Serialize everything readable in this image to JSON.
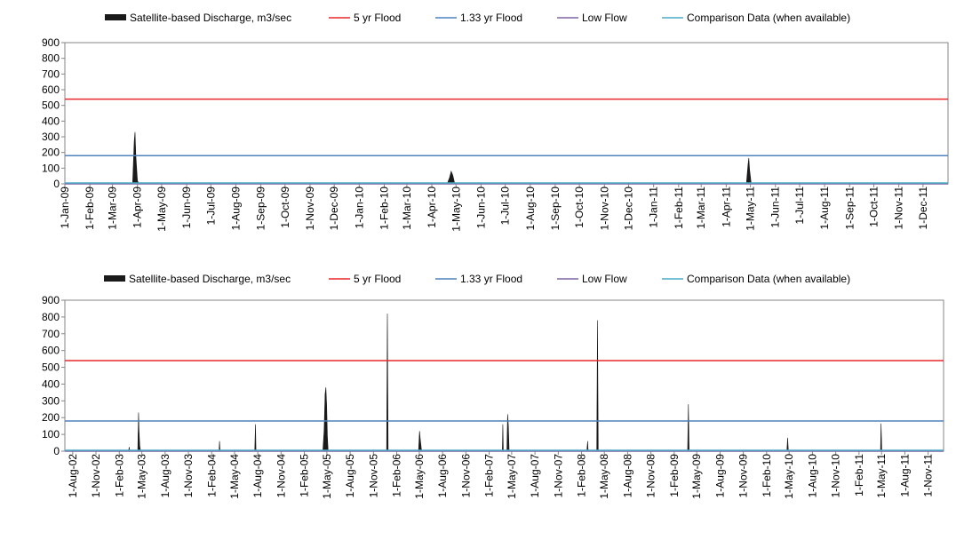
{
  "chart_data": [
    {
      "type": "area",
      "title": "",
      "xlabel": "",
      "ylabel": "",
      "ylim": [
        0,
        900
      ],
      "y_ticks": [
        "0",
        "100",
        "200",
        "300",
        "400",
        "500",
        "600",
        "700",
        "800",
        "900"
      ],
      "x_range": [
        "2009-01-01",
        "2012-01-01"
      ],
      "x_tick_labels": [
        "1-Jan-09",
        "1-Feb-09",
        "1-Mar-09",
        "1-Apr-09",
        "1-May-09",
        "1-Jun-09",
        "1-Jul-09",
        "1-Aug-09",
        "1-Sep-09",
        "1-Oct-09",
        "1-Nov-09",
        "1-Dec-09",
        "1-Jan-10",
        "1-Feb-10",
        "1-Mar-10",
        "1-Apr-10",
        "1-May-10",
        "1-Jun-10",
        "1-Jul-10",
        "1-Aug-10",
        "1-Sep-10",
        "1-Oct-10",
        "1-Nov-10",
        "1-Dec-10",
        "1-Jan-11",
        "1-Feb-11",
        "1-Mar-11",
        "1-Apr-11",
        "1-May-11",
        "1-Jun-11",
        "1-Jul-11",
        "1-Aug-11",
        "1-Sep-11",
        "1-Oct-11",
        "1-Nov-11",
        "1-Dec-11"
      ],
      "x_tick_dates": [
        "2009-01-01",
        "2009-02-01",
        "2009-03-01",
        "2009-04-01",
        "2009-05-01",
        "2009-06-01",
        "2009-07-01",
        "2009-08-01",
        "2009-09-01",
        "2009-10-01",
        "2009-11-01",
        "2009-12-01",
        "2010-01-01",
        "2010-02-01",
        "2010-03-01",
        "2010-04-01",
        "2010-05-01",
        "2010-06-01",
        "2010-07-01",
        "2010-08-01",
        "2010-09-01",
        "2010-10-01",
        "2010-11-01",
        "2010-12-01",
        "2011-01-01",
        "2011-02-01",
        "2011-03-01",
        "2011-04-01",
        "2011-05-01",
        "2011-06-01",
        "2011-07-01",
        "2011-08-01",
        "2011-09-01",
        "2011-10-01",
        "2011-11-01",
        "2011-12-01"
      ],
      "legend": [
        "Satellite-based Discharge, m3/sec",
        "5 yr Flood",
        "1.33 yr Flood",
        "Low Flow",
        "Comparison Data (when available)"
      ],
      "legend_position": "top",
      "grid": false,
      "horizontal_lines": [
        {
          "name": "5 yr Flood",
          "value": 540,
          "color": "#e8282b"
        },
        {
          "name": "1.33 yr Flood",
          "value": 180,
          "color": "#4f81bd"
        },
        {
          "name": "Low Flow",
          "value": 0,
          "color": "#8064a2"
        },
        {
          "name": "Comparison Data (when available)",
          "value": 0,
          "color": "#4bacc6"
        }
      ],
      "series": [
        {
          "name": "Satellite-based Discharge, m3/sec",
          "color": "#1a1a1a",
          "points": [
            [
              "2009-01-01",
              0
            ],
            [
              "2009-03-26",
              0
            ],
            [
              "2009-03-28",
              270
            ],
            [
              "2009-03-29",
              330
            ],
            [
              "2009-03-30",
              180
            ],
            [
              "2009-04-01",
              20
            ],
            [
              "2009-04-03",
              0
            ],
            [
              "2010-04-20",
              0
            ],
            [
              "2010-04-23",
              40
            ],
            [
              "2010-04-25",
              80
            ],
            [
              "2010-04-27",
              55
            ],
            [
              "2010-04-29",
              10
            ],
            [
              "2010-05-01",
              0
            ],
            [
              "2011-04-26",
              0
            ],
            [
              "2011-04-28",
              120
            ],
            [
              "2011-04-29",
              165
            ],
            [
              "2011-04-30",
              90
            ],
            [
              "2011-05-02",
              0
            ],
            [
              "2012-01-01",
              0
            ]
          ]
        }
      ]
    },
    {
      "type": "area",
      "title": "",
      "xlabel": "",
      "ylabel": "",
      "ylim": [
        0,
        900
      ],
      "y_ticks": [
        "0",
        "100",
        "200",
        "300",
        "400",
        "500",
        "600",
        "700",
        "800",
        "900"
      ],
      "x_range": [
        "2002-07-01",
        "2012-01-01"
      ],
      "x_tick_labels": [
        "1-Aug-02",
        "1-Nov-02",
        "1-Feb-03",
        "1-May-03",
        "1-Aug-03",
        "1-Nov-03",
        "1-Feb-04",
        "1-May-04",
        "1-Aug-04",
        "1-Nov-04",
        "1-Feb-05",
        "1-May-05",
        "1-Aug-05",
        "1-Nov-05",
        "1-Feb-06",
        "1-May-06",
        "1-Aug-06",
        "1-Nov-06",
        "1-Feb-07",
        "1-May-07",
        "1-Aug-07",
        "1-Nov-07",
        "1-Feb-08",
        "1-May-08",
        "1-Aug-08",
        "1-Nov-08",
        "1-Feb-09",
        "1-May-09",
        "1-Aug-09",
        "1-Nov-09",
        "1-Feb-10",
        "1-May-10",
        "1-Aug-10",
        "1-Nov-10",
        "1-Feb-11",
        "1-May-11",
        "1-Aug-11",
        "1-Nov-11"
      ],
      "x_tick_dates": [
        "2002-08-01",
        "2002-11-01",
        "2003-02-01",
        "2003-05-01",
        "2003-08-01",
        "2003-11-01",
        "2004-02-01",
        "2004-05-01",
        "2004-08-01",
        "2004-11-01",
        "2005-02-01",
        "2005-05-01",
        "2005-08-01",
        "2005-11-01",
        "2006-02-01",
        "2006-05-01",
        "2006-08-01",
        "2006-11-01",
        "2007-02-01",
        "2007-05-01",
        "2007-08-01",
        "2007-11-01",
        "2008-02-01",
        "2008-05-01",
        "2008-08-01",
        "2008-11-01",
        "2009-02-01",
        "2009-05-01",
        "2009-08-01",
        "2009-11-01",
        "2010-02-01",
        "2010-05-01",
        "2010-08-01",
        "2010-11-01",
        "2011-02-01",
        "2011-05-01",
        "2011-08-01",
        "2011-11-01"
      ],
      "legend": [
        "Satellite-based Discharge, m3/sec",
        "5 yr Flood",
        "1.33 yr Flood",
        "Low Flow",
        "Comparison Data (when available)"
      ],
      "legend_position": "top",
      "grid": false,
      "horizontal_lines": [
        {
          "name": "5 yr Flood",
          "value": 540,
          "color": "#e8282b"
        },
        {
          "name": "1.33 yr Flood",
          "value": 180,
          "color": "#4f81bd"
        },
        {
          "name": "Low Flow",
          "value": 0,
          "color": "#8064a2"
        },
        {
          "name": "Comparison Data (when available)",
          "value": 0,
          "color": "#4bacc6"
        }
      ],
      "series": [
        {
          "name": "Satellite-based Discharge, m3/sec",
          "color": "#1a1a1a",
          "points": [
            [
              "2002-07-01",
              0
            ],
            [
              "2003-03-10",
              0
            ],
            [
              "2003-03-12",
              25
            ],
            [
              "2003-03-14",
              0
            ],
            [
              "2003-04-15",
              0
            ],
            [
              "2003-04-18",
              230
            ],
            [
              "2003-04-20",
              120
            ],
            [
              "2003-04-23",
              30
            ],
            [
              "2003-04-26",
              0
            ],
            [
              "2004-03-01",
              0
            ],
            [
              "2004-03-03",
              60
            ],
            [
              "2004-03-05",
              0
            ],
            [
              "2004-07-20",
              0
            ],
            [
              "2004-07-23",
              160
            ],
            [
              "2004-07-25",
              0
            ],
            [
              "2005-04-15",
              0
            ],
            [
              "2005-04-20",
              120
            ],
            [
              "2005-04-24",
              340
            ],
            [
              "2005-04-27",
              380
            ],
            [
              "2005-04-30",
              280
            ],
            [
              "2005-05-03",
              90
            ],
            [
              "2005-05-06",
              0
            ],
            [
              "2005-12-23",
              0
            ],
            [
              "2005-12-26",
              820
            ],
            [
              "2005-12-29",
              0
            ],
            [
              "2006-04-28",
              0
            ],
            [
              "2006-05-02",
              120
            ],
            [
              "2006-05-05",
              70
            ],
            [
              "2006-05-09",
              15
            ],
            [
              "2006-05-12",
              0
            ],
            [
              "2007-03-25",
              0
            ],
            [
              "2007-03-27",
              160
            ],
            [
              "2007-03-29",
              0
            ],
            [
              "2007-04-12",
              0
            ],
            [
              "2007-04-15",
              220
            ],
            [
              "2007-04-18",
              150
            ],
            [
              "2007-04-21",
              0
            ],
            [
              "2008-02-22",
              0
            ],
            [
              "2008-02-25",
              60
            ],
            [
              "2008-02-27",
              0
            ],
            [
              "2008-04-01",
              0
            ],
            [
              "2008-04-04",
              780
            ],
            [
              "2008-04-07",
              0
            ],
            [
              "2009-03-26",
              0
            ],
            [
              "2009-03-29",
              280
            ],
            [
              "2009-04-01",
              0
            ],
            [
              "2010-04-22",
              0
            ],
            [
              "2010-04-25",
              80
            ],
            [
              "2010-04-28",
              0
            ],
            [
              "2011-04-27",
              0
            ],
            [
              "2011-04-29",
              165
            ],
            [
              "2011-05-02",
              0
            ],
            [
              "2012-01-01",
              0
            ]
          ]
        }
      ]
    }
  ]
}
